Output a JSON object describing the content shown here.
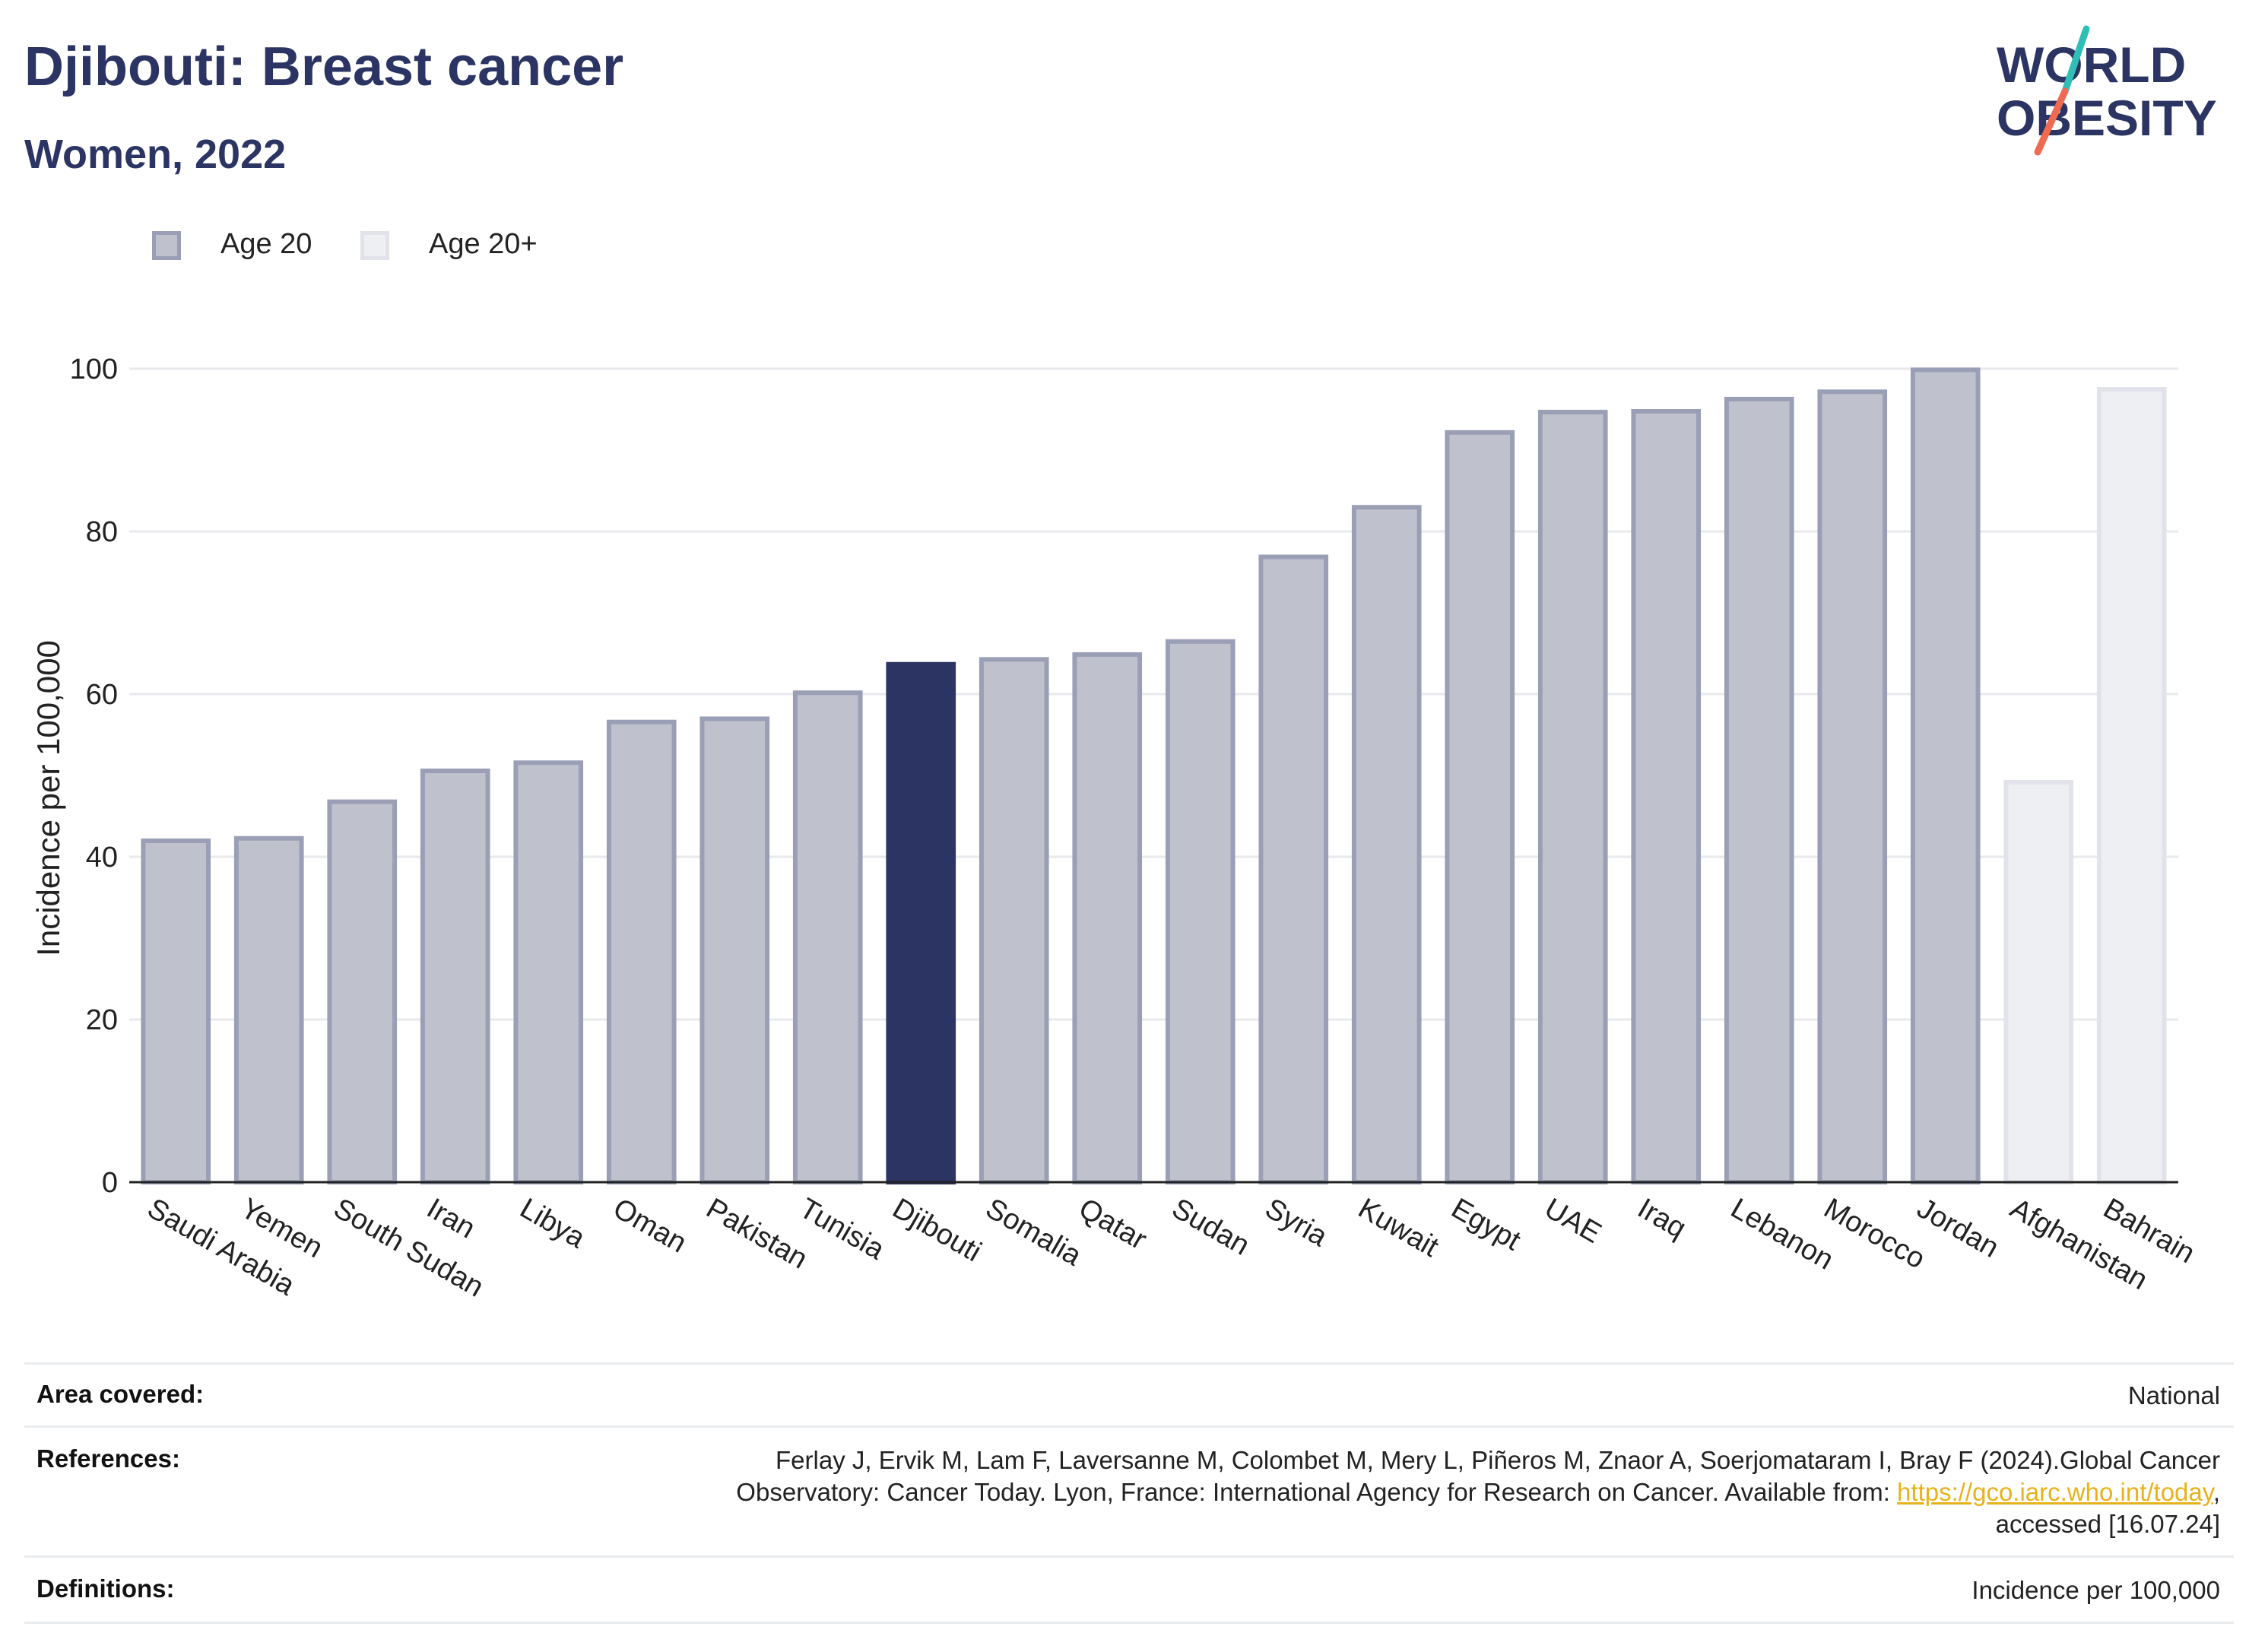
{
  "header": {
    "title": "Djibouti: Breast cancer",
    "subtitle": "Women, 2022"
  },
  "logo": {
    "line1": "WORLD",
    "line2": "OBESITY",
    "colors": {
      "text": "#2b3462",
      "slash_top": "#2fbfb6",
      "slash_bottom": "#ee6a50"
    }
  },
  "legend": [
    {
      "label": "Age 20",
      "fill": "#bfc1cd",
      "stroke": "#9a9fb6"
    },
    {
      "label": "Age 20+",
      "fill": "#eeeff3",
      "stroke": "#e2e3ea"
    }
  ],
  "colors": {
    "highlight": "#2b3462",
    "age20_fill": "#bfc1cd",
    "age20_stroke": "#9a9fb6",
    "age20plus_fill": "#eeeff3",
    "age20plus_stroke": "#e2e3ea",
    "grid": "#e9e9ee",
    "axis": "#222222"
  },
  "chart_data": {
    "type": "bar",
    "title": "Djibouti: Breast cancer",
    "subtitle": "Women, 2022",
    "xlabel": "",
    "ylabel": "Incidence per 100,000",
    "ylim": [
      0,
      100
    ],
    "yticks": [
      0,
      20,
      40,
      60,
      80,
      100
    ],
    "grid": true,
    "legend_placement": "top-left",
    "highlight": "Djibouti",
    "categories": [
      "Saudi Arabia",
      "Yemen",
      "South Sudan",
      "Iran",
      "Libya",
      "Oman",
      "Pakistan",
      "Tunisia",
      "Djibouti",
      "Somalia",
      "Qatar",
      "Sudan",
      "Syria",
      "Kuwait",
      "Egypt",
      "UAE",
      "Iraq",
      "Lebanon",
      "Morocco",
      "Jordan",
      "Afghanistan",
      "Bahrain"
    ],
    "values": [
      42.2,
      42.5,
      47.0,
      50.8,
      51.8,
      56.8,
      57.2,
      60.4,
      63.9,
      64.5,
      65.1,
      66.7,
      77.1,
      83.2,
      92.4,
      94.9,
      95.0,
      96.5,
      97.4,
      100.1,
      49.4,
      97.7
    ],
    "series_group": [
      "Age 20",
      "Age 20",
      "Age 20",
      "Age 20",
      "Age 20",
      "Age 20",
      "Age 20",
      "Age 20",
      "Age 20",
      "Age 20",
      "Age 20",
      "Age 20",
      "Age 20",
      "Age 20",
      "Age 20",
      "Age 20",
      "Age 20",
      "Age 20",
      "Age 20",
      "Age 20",
      "Age 20+",
      "Age 20+"
    ]
  },
  "info": {
    "area_label": "Area covered:",
    "area_value": "National",
    "references_label": "References:",
    "references_line1": "Ferlay J, Ervik M, Lam F, Laversanne M, Colombet M, Mery L, Piñeros M, Znaor A, Soerjomataram I, Bray F (2024).Global Cancer",
    "references_line2_pre": "Observatory: Cancer Today. Lyon, France: International Agency for Research on Cancer. Available from: ",
    "references_link": "https://gco.iarc.who.int/today",
    "references_line2_post": ",",
    "references_line3": "accessed [16.07.24]",
    "definitions_label": "Definitions:",
    "definitions_value": "Incidence per 100,000"
  }
}
